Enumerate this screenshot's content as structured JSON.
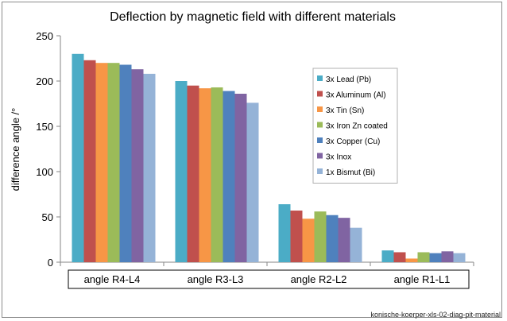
{
  "chart_data": {
    "type": "bar",
    "title": "Deflection by magnetic field with different materials",
    "xlabel": "",
    "ylabel": "difference angle /°",
    "ylim": [
      0,
      250
    ],
    "yticks": [
      "0",
      "50",
      "100",
      "150",
      "200",
      "250"
    ],
    "grid": false,
    "legend_position": "top-right",
    "categories": [
      "angle R4-L4",
      "angle R3-L3",
      "angle R2-L2",
      "angle R1-L1"
    ],
    "series": [
      {
        "name": "3x Lead (Pb)",
        "color": "#4bacc6",
        "values": [
          230,
          200,
          64,
          13
        ]
      },
      {
        "name": "3x Aluminum (Al)",
        "color": "#c0504d",
        "values": [
          223,
          195,
          57,
          11
        ]
      },
      {
        "name": "3x Tin (Sn)",
        "color": "#f79646",
        "values": [
          220,
          192,
          48,
          4
        ]
      },
      {
        "name": "3x Iron Zn coated",
        "color": "#9bbb59",
        "values": [
          220,
          193,
          56,
          11
        ]
      },
      {
        "name": "3x Copper (Cu)",
        "color": "#4f81bd",
        "values": [
          218,
          189,
          52,
          10
        ]
      },
      {
        "name": "3x Inox",
        "color": "#8064a2",
        "values": [
          213,
          186,
          49,
          12
        ]
      },
      {
        "name": "1x Bismut (Bi)",
        "color": "#95b3d7",
        "values": [
          208,
          176,
          38,
          10
        ]
      }
    ]
  },
  "caption": "konische-koerper-xls-02-diag-pit-material"
}
